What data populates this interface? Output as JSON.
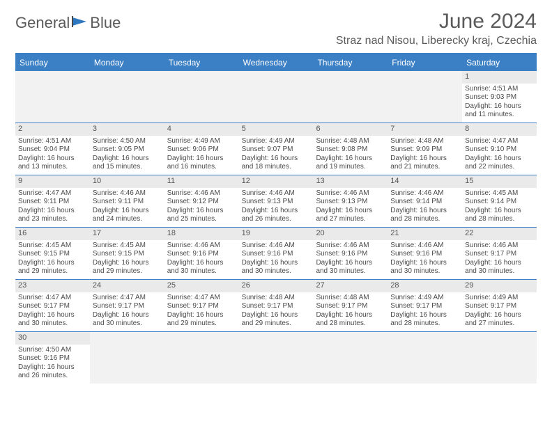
{
  "colors": {
    "header_bg": "#3b7fc4",
    "header_text": "#ffffff",
    "daynum_bg": "#eaeaea",
    "empty_bg": "#f2f2f2",
    "body_text": "#4a4a4a",
    "title_text": "#5a5a5a",
    "logo_blue": "#2e78c2",
    "row_border": "#3b7fc4"
  },
  "typography": {
    "title_fontsize": 30,
    "location_fontsize": 16,
    "weekday_fontsize": 12,
    "daynum_fontsize": 11,
    "body_fontsize": 10
  },
  "logo": {
    "text1": "General",
    "text2": "Blue"
  },
  "title": {
    "month": "June 2024",
    "location": "Straz nad Nisou, Liberecky kraj, Czechia"
  },
  "weekdays": [
    "Sunday",
    "Monday",
    "Tuesday",
    "Wednesday",
    "Thursday",
    "Friday",
    "Saturday"
  ],
  "weeks": [
    [
      null,
      null,
      null,
      null,
      null,
      null,
      {
        "n": "1",
        "sr": "Sunrise: 4:51 AM",
        "ss": "Sunset: 9:03 PM",
        "d1": "Daylight: 16 hours",
        "d2": "and 11 minutes."
      }
    ],
    [
      {
        "n": "2",
        "sr": "Sunrise: 4:51 AM",
        "ss": "Sunset: 9:04 PM",
        "d1": "Daylight: 16 hours",
        "d2": "and 13 minutes."
      },
      {
        "n": "3",
        "sr": "Sunrise: 4:50 AM",
        "ss": "Sunset: 9:05 PM",
        "d1": "Daylight: 16 hours",
        "d2": "and 15 minutes."
      },
      {
        "n": "4",
        "sr": "Sunrise: 4:49 AM",
        "ss": "Sunset: 9:06 PM",
        "d1": "Daylight: 16 hours",
        "d2": "and 16 minutes."
      },
      {
        "n": "5",
        "sr": "Sunrise: 4:49 AM",
        "ss": "Sunset: 9:07 PM",
        "d1": "Daylight: 16 hours",
        "d2": "and 18 minutes."
      },
      {
        "n": "6",
        "sr": "Sunrise: 4:48 AM",
        "ss": "Sunset: 9:08 PM",
        "d1": "Daylight: 16 hours",
        "d2": "and 19 minutes."
      },
      {
        "n": "7",
        "sr": "Sunrise: 4:48 AM",
        "ss": "Sunset: 9:09 PM",
        "d1": "Daylight: 16 hours",
        "d2": "and 21 minutes."
      },
      {
        "n": "8",
        "sr": "Sunrise: 4:47 AM",
        "ss": "Sunset: 9:10 PM",
        "d1": "Daylight: 16 hours",
        "d2": "and 22 minutes."
      }
    ],
    [
      {
        "n": "9",
        "sr": "Sunrise: 4:47 AM",
        "ss": "Sunset: 9:11 PM",
        "d1": "Daylight: 16 hours",
        "d2": "and 23 minutes."
      },
      {
        "n": "10",
        "sr": "Sunrise: 4:46 AM",
        "ss": "Sunset: 9:11 PM",
        "d1": "Daylight: 16 hours",
        "d2": "and 24 minutes."
      },
      {
        "n": "11",
        "sr": "Sunrise: 4:46 AM",
        "ss": "Sunset: 9:12 PM",
        "d1": "Daylight: 16 hours",
        "d2": "and 25 minutes."
      },
      {
        "n": "12",
        "sr": "Sunrise: 4:46 AM",
        "ss": "Sunset: 9:13 PM",
        "d1": "Daylight: 16 hours",
        "d2": "and 26 minutes."
      },
      {
        "n": "13",
        "sr": "Sunrise: 4:46 AM",
        "ss": "Sunset: 9:13 PM",
        "d1": "Daylight: 16 hours",
        "d2": "and 27 minutes."
      },
      {
        "n": "14",
        "sr": "Sunrise: 4:46 AM",
        "ss": "Sunset: 9:14 PM",
        "d1": "Daylight: 16 hours",
        "d2": "and 28 minutes."
      },
      {
        "n": "15",
        "sr": "Sunrise: 4:45 AM",
        "ss": "Sunset: 9:14 PM",
        "d1": "Daylight: 16 hours",
        "d2": "and 28 minutes."
      }
    ],
    [
      {
        "n": "16",
        "sr": "Sunrise: 4:45 AM",
        "ss": "Sunset: 9:15 PM",
        "d1": "Daylight: 16 hours",
        "d2": "and 29 minutes."
      },
      {
        "n": "17",
        "sr": "Sunrise: 4:45 AM",
        "ss": "Sunset: 9:15 PM",
        "d1": "Daylight: 16 hours",
        "d2": "and 29 minutes."
      },
      {
        "n": "18",
        "sr": "Sunrise: 4:46 AM",
        "ss": "Sunset: 9:16 PM",
        "d1": "Daylight: 16 hours",
        "d2": "and 30 minutes."
      },
      {
        "n": "19",
        "sr": "Sunrise: 4:46 AM",
        "ss": "Sunset: 9:16 PM",
        "d1": "Daylight: 16 hours",
        "d2": "and 30 minutes."
      },
      {
        "n": "20",
        "sr": "Sunrise: 4:46 AM",
        "ss": "Sunset: 9:16 PM",
        "d1": "Daylight: 16 hours",
        "d2": "and 30 minutes."
      },
      {
        "n": "21",
        "sr": "Sunrise: 4:46 AM",
        "ss": "Sunset: 9:16 PM",
        "d1": "Daylight: 16 hours",
        "d2": "and 30 minutes."
      },
      {
        "n": "22",
        "sr": "Sunrise: 4:46 AM",
        "ss": "Sunset: 9:17 PM",
        "d1": "Daylight: 16 hours",
        "d2": "and 30 minutes."
      }
    ],
    [
      {
        "n": "23",
        "sr": "Sunrise: 4:47 AM",
        "ss": "Sunset: 9:17 PM",
        "d1": "Daylight: 16 hours",
        "d2": "and 30 minutes."
      },
      {
        "n": "24",
        "sr": "Sunrise: 4:47 AM",
        "ss": "Sunset: 9:17 PM",
        "d1": "Daylight: 16 hours",
        "d2": "and 30 minutes."
      },
      {
        "n": "25",
        "sr": "Sunrise: 4:47 AM",
        "ss": "Sunset: 9:17 PM",
        "d1": "Daylight: 16 hours",
        "d2": "and 29 minutes."
      },
      {
        "n": "26",
        "sr": "Sunrise: 4:48 AM",
        "ss": "Sunset: 9:17 PM",
        "d1": "Daylight: 16 hours",
        "d2": "and 29 minutes."
      },
      {
        "n": "27",
        "sr": "Sunrise: 4:48 AM",
        "ss": "Sunset: 9:17 PM",
        "d1": "Daylight: 16 hours",
        "d2": "and 28 minutes."
      },
      {
        "n": "28",
        "sr": "Sunrise: 4:49 AM",
        "ss": "Sunset: 9:17 PM",
        "d1": "Daylight: 16 hours",
        "d2": "and 28 minutes."
      },
      {
        "n": "29",
        "sr": "Sunrise: 4:49 AM",
        "ss": "Sunset: 9:17 PM",
        "d1": "Daylight: 16 hours",
        "d2": "and 27 minutes."
      }
    ],
    [
      {
        "n": "30",
        "sr": "Sunrise: 4:50 AM",
        "ss": "Sunset: 9:16 PM",
        "d1": "Daylight: 16 hours",
        "d2": "and 26 minutes."
      },
      null,
      null,
      null,
      null,
      null,
      null
    ]
  ]
}
